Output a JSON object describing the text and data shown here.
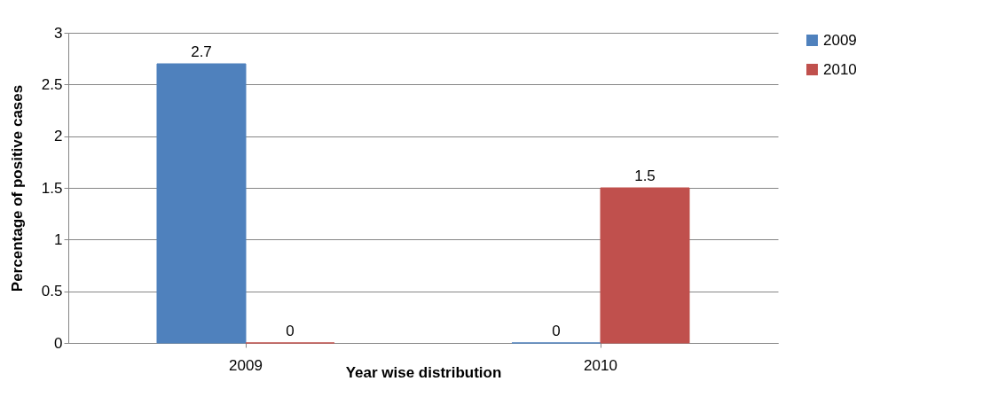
{
  "chart_data": {
    "type": "bar",
    "xlabel": "Year wise distribution",
    "ylabel": "Percentage of positive cases",
    "categories": [
      "2009",
      "2010"
    ],
    "series": [
      {
        "name": "2009",
        "color": "#4f81bd",
        "values": [
          2.7,
          0
        ]
      },
      {
        "name": "2010",
        "color": "#c0504d",
        "values": [
          0,
          1.5
        ]
      }
    ],
    "ylim": [
      0,
      3
    ],
    "yticks": [
      0,
      0.5,
      1,
      1.5,
      2,
      2.5,
      3
    ],
    "grid": "y",
    "legend": "right",
    "data_labels": true
  }
}
